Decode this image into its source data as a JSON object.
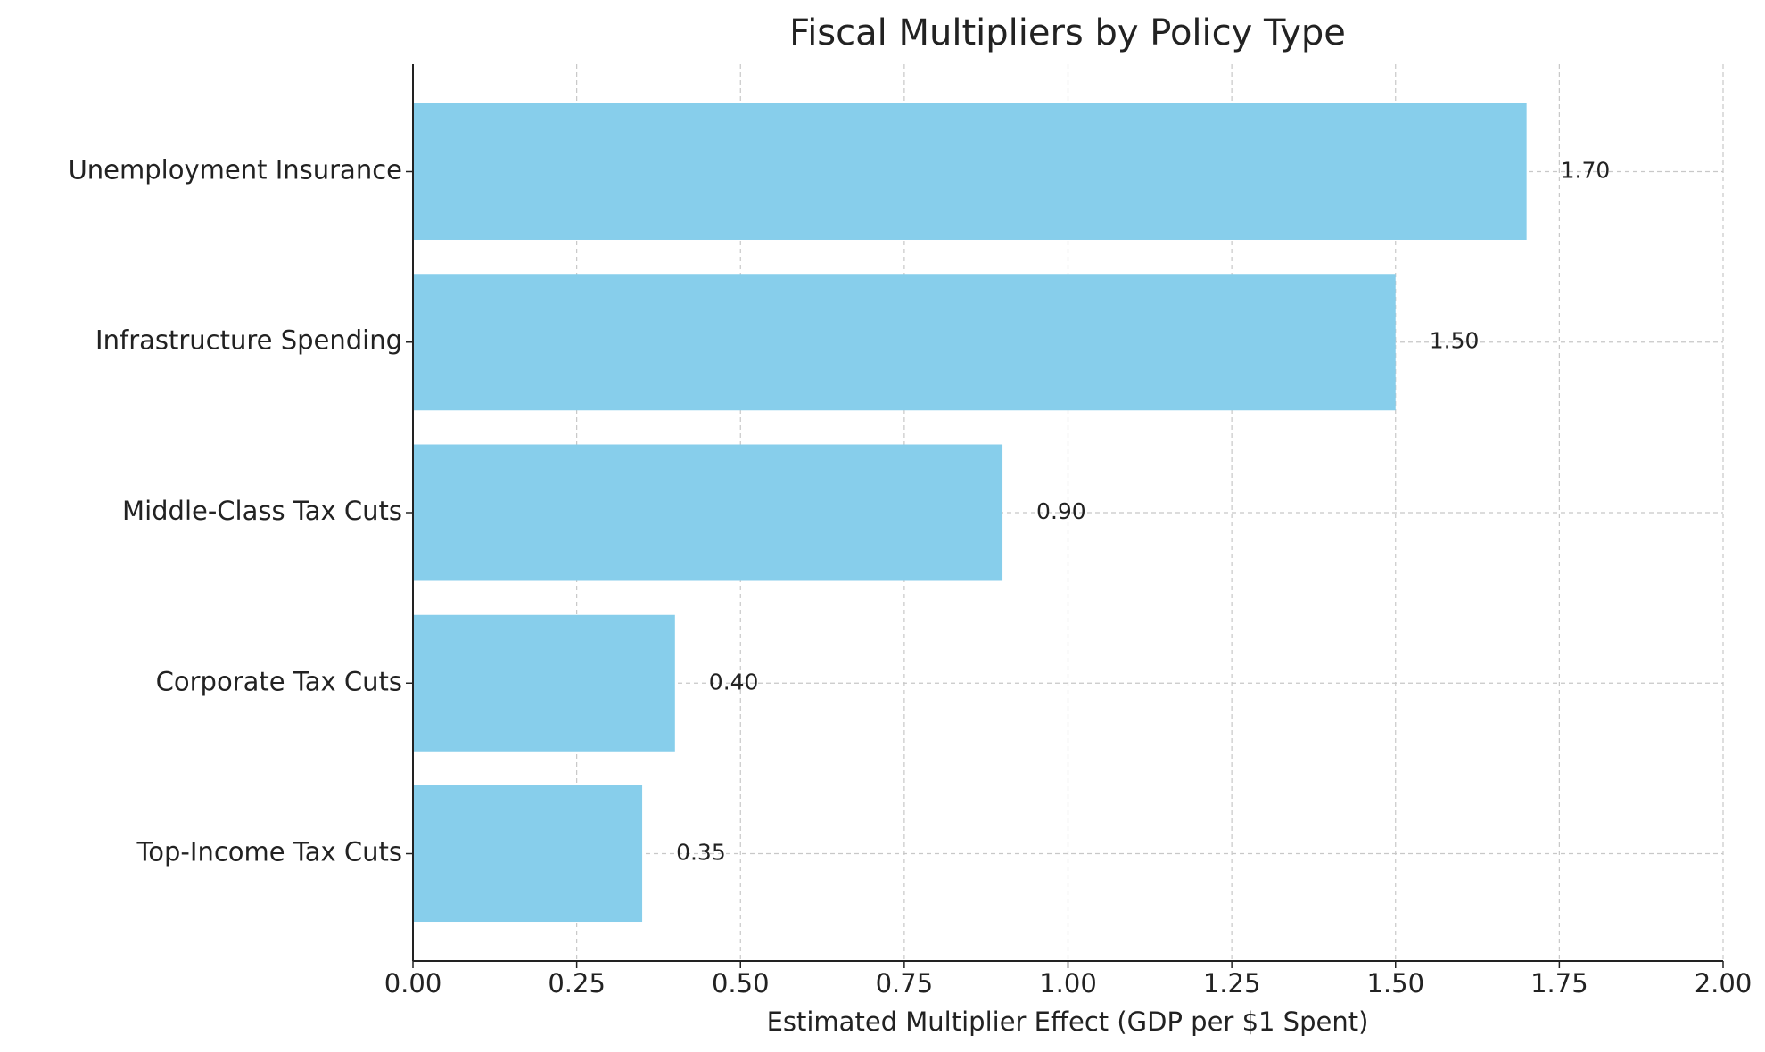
{
  "chart_data": {
    "type": "barh",
    "title": "Fiscal Multipliers by Policy Type",
    "xlabel": "Estimated Multiplier Effect (GDP per $1 Spent)",
    "categories": [
      "Unemployment Insurance",
      "Infrastructure Spending",
      "Middle-Class Tax Cuts",
      "Corporate Tax Cuts",
      "Top-Income Tax Cuts"
    ],
    "values": [
      1.7,
      1.5,
      0.9,
      0.4,
      0.35
    ],
    "value_labels": [
      "1.70",
      "1.50",
      "0.90",
      "0.40",
      "0.35"
    ],
    "color": "#87ceeb",
    "xlim": [
      0,
      2
    ],
    "xticks": [
      {
        "value": 0,
        "label": "0.00"
      },
      {
        "value": 0.25,
        "label": "0.25"
      },
      {
        "value": 0.5,
        "label": "0.50"
      },
      {
        "value": 0.75,
        "label": "0.75"
      },
      {
        "value": 1,
        "label": "1.00"
      },
      {
        "value": 1.25,
        "label": "1.25"
      },
      {
        "value": 1.5,
        "label": "1.50"
      },
      {
        "value": 1.75,
        "label": "1.75"
      },
      {
        "value": 2,
        "label": "2.00"
      }
    ],
    "grid": true
  }
}
